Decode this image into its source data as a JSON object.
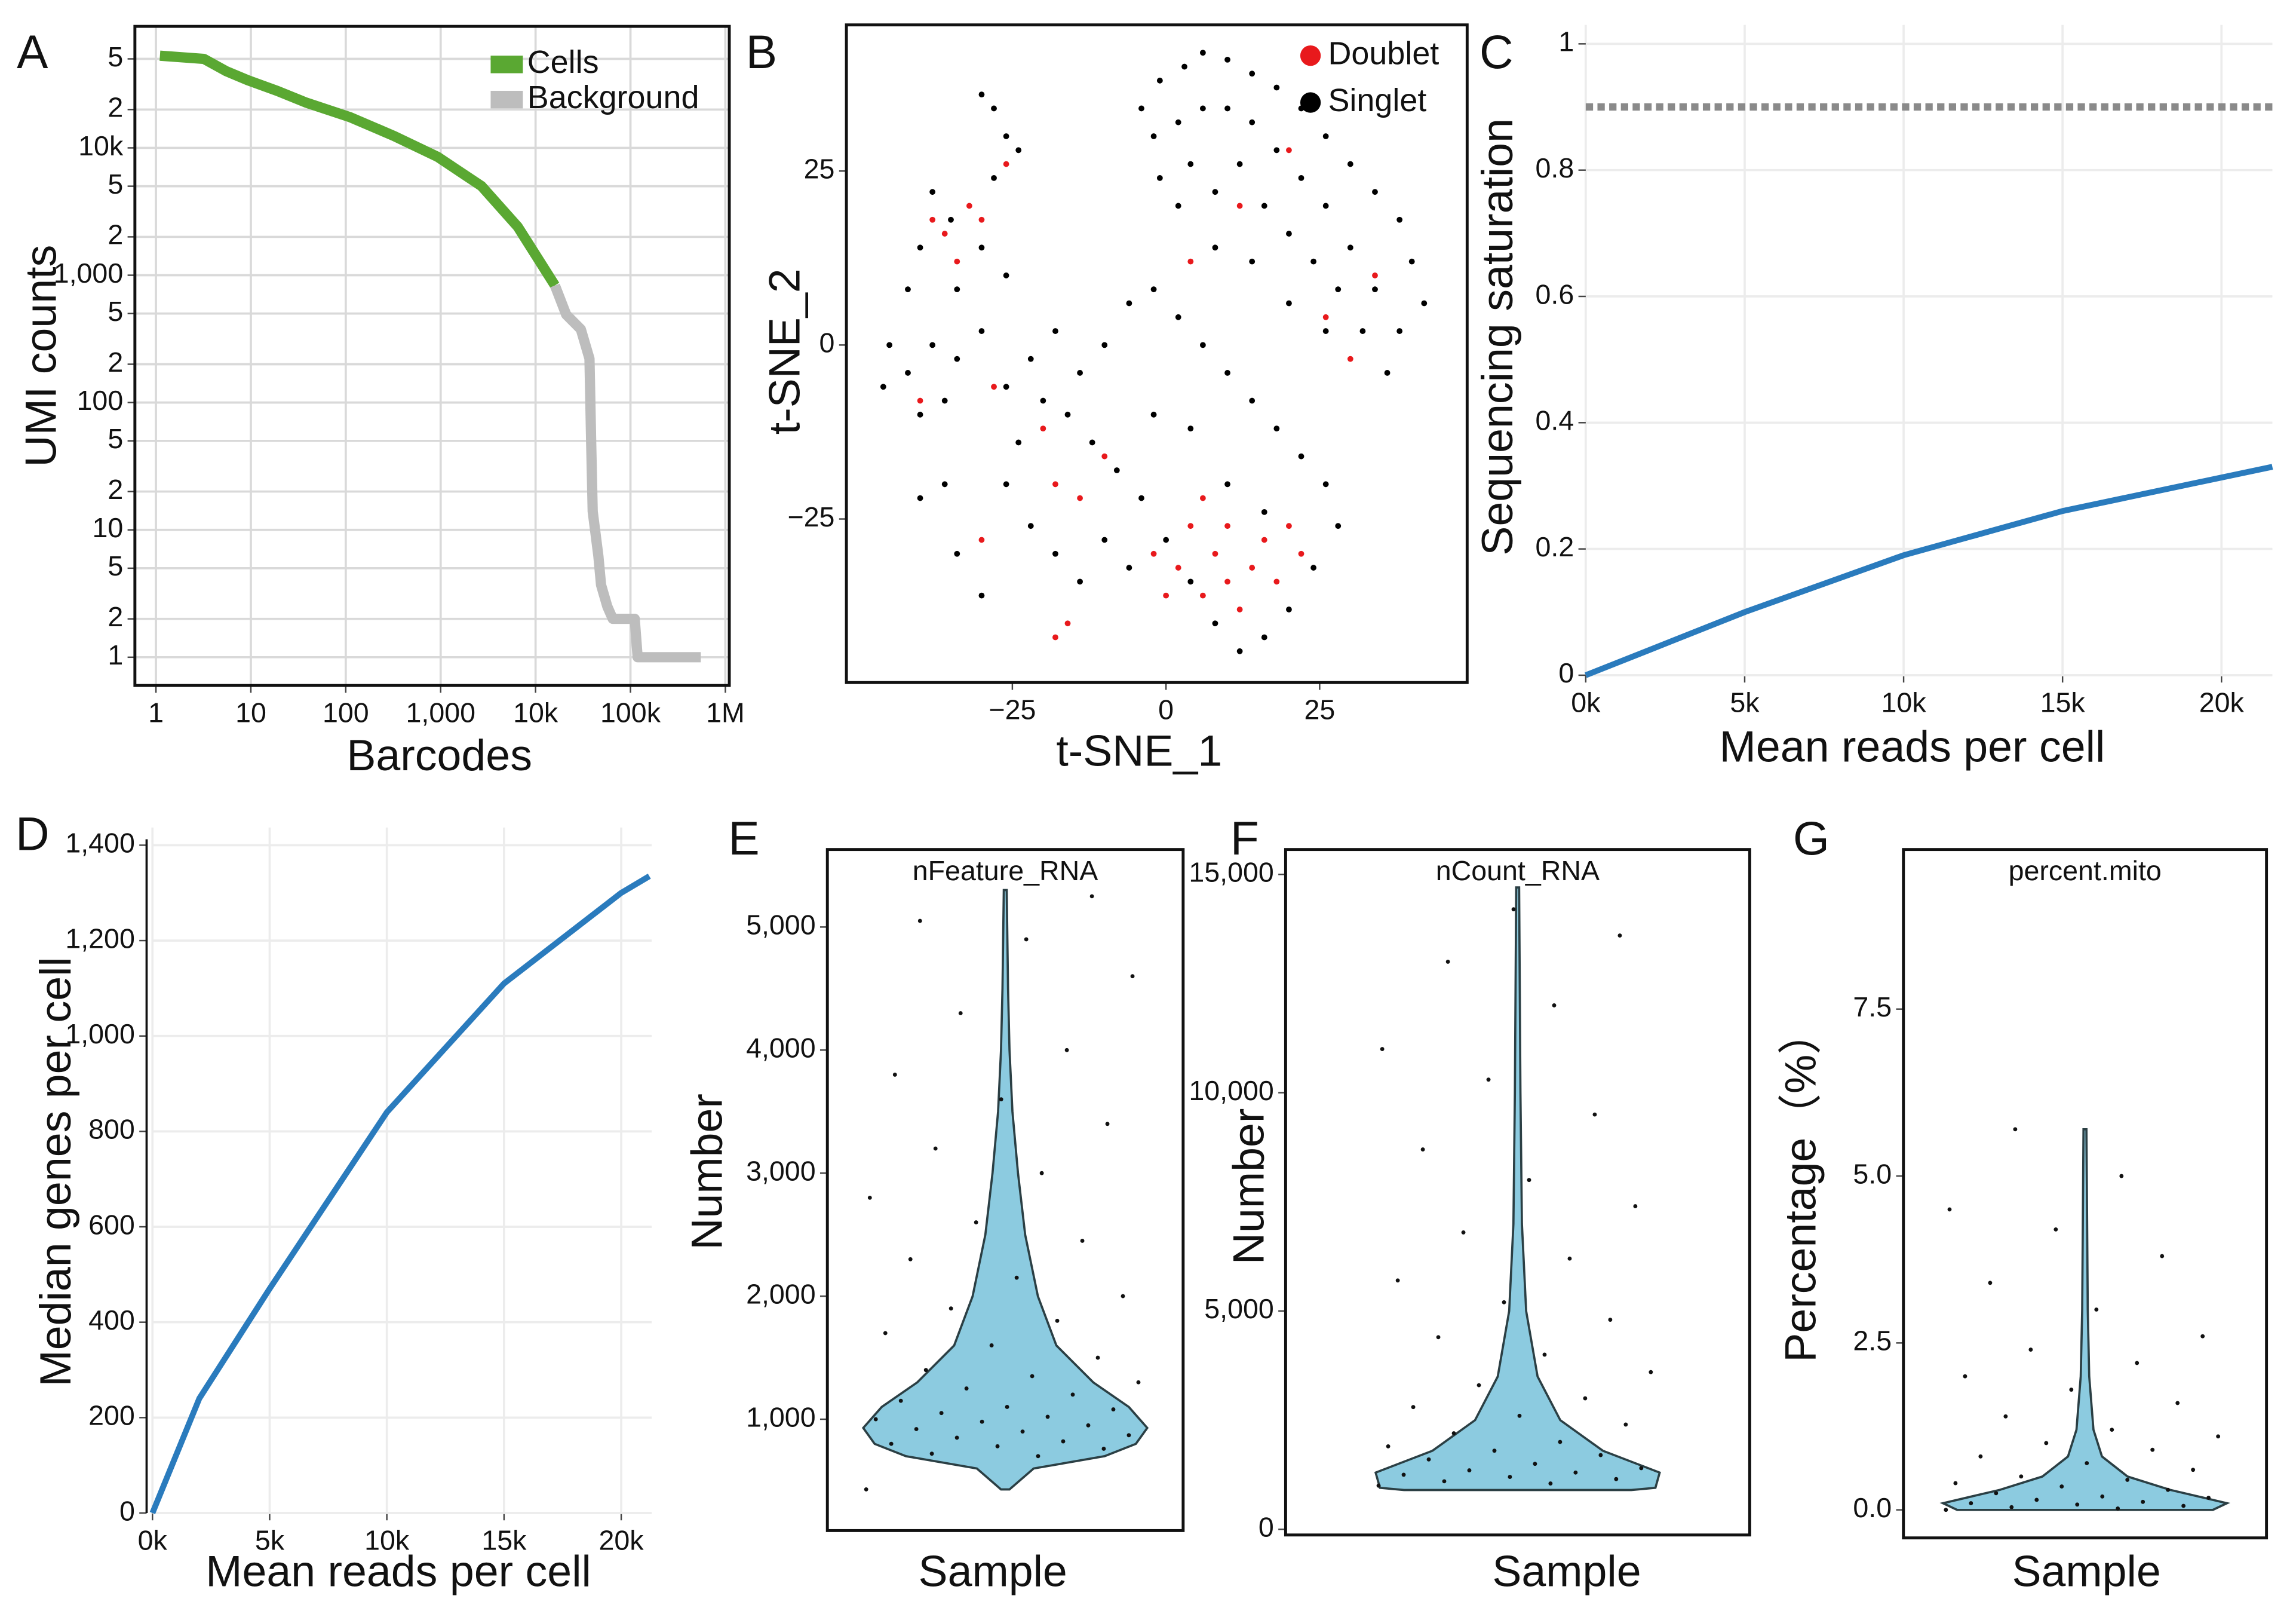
{
  "chart_data": [
    {
      "type": "line",
      "label": "A",
      "xlabel": "Barcodes",
      "ylabel": "UMI counts",
      "xscale": "log",
      "yscale": "log",
      "xlim": [
        0.6,
        1100000
      ],
      "ylim": [
        0.6,
        90000
      ],
      "xticks": [
        1,
        10,
        100,
        {
          "value": 1000,
          "label": "1,000"
        },
        {
          "value": 10000,
          "label": "10k"
        },
        {
          "value": 100000,
          "label": "100k"
        },
        {
          "value": 1000000,
          "label": "1M"
        }
      ],
      "yticks": [
        1,
        2,
        5,
        10,
        {
          "value": 20,
          "label": "2"
        },
        {
          "value": 50,
          "label": "5"
        },
        100,
        {
          "value": 200,
          "label": "2"
        },
        {
          "value": 500,
          "label": "5"
        },
        {
          "value": 1000,
          "label": "1,000"
        },
        {
          "value": 2000,
          "label": "2"
        },
        {
          "value": 5000,
          "label": "5"
        },
        {
          "value": 10000,
          "label": "10k"
        },
        {
          "value": 20000,
          "label": "2"
        },
        {
          "value": 50000,
          "label": "5"
        }
      ],
      "grid": true,
      "legend": "upper right",
      "series": [
        {
          "name": "Cells",
          "color": "#5aa832",
          "x": [
            1.1,
            3.2,
            5.5,
            9.3,
            19,
            38,
            111,
            322,
            930,
            2700,
            6500,
            16000
          ],
          "values": [
            53000,
            50000,
            40000,
            34000,
            28000,
            22700,
            17400,
            12400,
            8500,
            5000,
            2400,
            830
          ]
        },
        {
          "name": "Background",
          "color": "#bdbdbd",
          "x": [
            16000,
            21000,
            30000,
            37000,
            38500,
            40000,
            46000,
            49000,
            57000,
            65000,
            93000,
            111000,
            119000,
            550000
          ],
          "values": [
            830,
            490,
            376,
            221,
            52,
            14,
            6.2,
            3.7,
            2.5,
            2,
            2,
            2,
            1,
            1
          ]
        }
      ]
    },
    {
      "type": "scatter",
      "label": "B",
      "xlabel": "t-SNE_1",
      "ylabel": "t-SNE_2",
      "xlim": [
        -52,
        49
      ],
      "ylim": [
        -48.5,
        46
      ],
      "xticks": [
        {
          "value": -25,
          "label": "−25"
        },
        0,
        25
      ],
      "yticks": [
        {
          "value": -25,
          "label": "−25"
        },
        0,
        25
      ],
      "grid": false,
      "legend": "upper right",
      "series": [
        {
          "name": "Doublet",
          "color": "#e8191c",
          "x": [
            -38,
            -34,
            -30,
            -36,
            -32,
            -40,
            -28,
            -20,
            -18,
            -14,
            -10,
            -2,
            2,
            6,
            8,
            10,
            12,
            14,
            16,
            18,
            4,
            0,
            6,
            20,
            22,
            10,
            -16,
            -18,
            26,
            30,
            34,
            4,
            12,
            20,
            -30,
            -26
          ],
          "values": [
            18,
            12,
            18,
            16,
            20,
            -8,
            -6,
            -12,
            -20,
            -22,
            -16,
            -30,
            -32,
            -36,
            -30,
            -34,
            -38,
            -32,
            -28,
            -34,
            -26,
            -36,
            -22,
            -26,
            -30,
            -26,
            -40,
            -42,
            4,
            -2,
            10,
            12,
            20,
            28,
            -28,
            26
          ]
        },
        {
          "name": "Singlet",
          "color": "#000000",
          "x": [
            -1,
            3,
            6,
            10,
            14,
            18,
            22,
            26,
            30,
            34,
            38,
            40,
            42,
            38,
            34,
            30,
            26,
            22,
            18,
            14,
            10,
            6,
            2,
            -2,
            -4,
            4,
            8,
            12,
            16,
            20,
            24,
            28,
            32,
            36,
            26,
            20,
            14,
            8,
            2,
            -1,
            -38,
            -35,
            -30,
            -26,
            -40,
            -34,
            -28,
            -26,
            -28,
            -30,
            -24,
            -42,
            -45,
            -42,
            -38,
            -34,
            -30,
            -46,
            -40,
            -36,
            -22,
            -18,
            -14,
            -10,
            -6,
            -2,
            2,
            6,
            10,
            14,
            18,
            22,
            26,
            28,
            24,
            20,
            16,
            12,
            8,
            4,
            0,
            -4,
            -8,
            -12,
            -16,
            -20,
            -24,
            -26,
            -22,
            -18,
            -14,
            -10,
            -6,
            -34,
            -30,
            -36,
            -40,
            -26,
            10,
            16,
            4,
            -2
          ],
          "values": [
            38,
            40,
            42,
            41,
            39,
            37,
            34,
            30,
            26,
            22,
            18,
            12,
            6,
            2,
            8,
            14,
            20,
            24,
            28,
            32,
            34,
            34,
            32,
            30,
            34,
            26,
            22,
            26,
            20,
            16,
            12,
            8,
            2,
            -4,
            2,
            6,
            12,
            14,
            20,
            24,
            22,
            18,
            14,
            10,
            14,
            8,
            24,
            30,
            34,
            36,
            28,
            8,
            0,
            -4,
            0,
            -2,
            2,
            -6,
            -10,
            -8,
            -2,
            2,
            -4,
            0,
            6,
            8,
            4,
            0,
            -4,
            -8,
            -12,
            -16,
            -20,
            -26,
            -32,
            -38,
            -42,
            -44,
            -40,
            -34,
            -28,
            -22,
            -18,
            -14,
            -10,
            -8,
            -14,
            -20,
            -26,
            -30,
            -34,
            -28,
            -32,
            -30,
            -36,
            -20,
            -22,
            -6,
            -20,
            -24,
            -12,
            -10
          ]
        }
      ]
    },
    {
      "type": "line",
      "label": "C",
      "xlabel": "Mean reads per cell",
      "ylabel": "Sequencing saturation",
      "xlim": [
        0,
        21600
      ],
      "ylim": [
        0,
        1.03
      ],
      "xticks": [
        {
          "value": 0,
          "label": "0k"
        },
        {
          "value": 5000,
          "label": "5k"
        },
        {
          "value": 10000,
          "label": "10k"
        },
        {
          "value": 15000,
          "label": "15k"
        },
        {
          "value": 20000,
          "label": "20k"
        }
      ],
      "yticks": [
        0,
        0.2,
        0.4,
        0.6,
        0.8,
        1
      ],
      "grid": true,
      "hline": 0.9,
      "color": "#2a7bbd",
      "x": [
        0,
        2000,
        5000,
        10000,
        15000,
        21600
      ],
      "values": [
        0,
        0.04,
        0.1,
        0.19,
        0.26,
        0.33
      ]
    },
    {
      "type": "line",
      "label": "D",
      "xlabel": "Mean reads per cell",
      "ylabel": "Median genes per cell",
      "xlim": [
        0,
        21300
      ],
      "ylim": [
        0,
        1437
      ],
      "xticks": [
        {
          "value": 0,
          "label": "0k"
        },
        {
          "value": 5000,
          "label": "5k"
        },
        {
          "value": 10000,
          "label": "10k"
        },
        {
          "value": 15000,
          "label": "15k"
        },
        {
          "value": 20000,
          "label": "20k"
        }
      ],
      "yticks": [
        0,
        200,
        400,
        600,
        800,
        {
          "value": 1000,
          "label": "1,000"
        },
        {
          "value": 1200,
          "label": "1,200"
        },
        {
          "value": 1400,
          "label": "1,400"
        }
      ],
      "grid": true,
      "color": "#2a7bbd",
      "x": [
        0,
        2000,
        5000,
        10000,
        15000,
        20000,
        21200
      ],
      "values": [
        0,
        240,
        470,
        840,
        1110,
        1300,
        1335
      ]
    },
    {
      "type": "violin",
      "label": "E",
      "title": "nFeature_RNA",
      "xlabel": "Sample",
      "ylabel": "Number",
      "ylim": [
        95,
        5630
      ],
      "yticks": [
        {
          "value": 1000,
          "label": "1,000"
        },
        {
          "value": 2000,
          "label": "2,000"
        },
        {
          "value": 3000,
          "label": "3,000"
        },
        {
          "value": 4000,
          "label": "4,000"
        },
        {
          "value": 5000,
          "label": "5,000"
        }
      ],
      "grid": false,
      "color": "#8ccbe0",
      "violin": {
        "y": [
          430,
          600,
          700,
          800,
          930,
          1100,
          1300,
          1600,
          2000,
          2500,
          3000,
          3500,
          4000,
          4500,
          5300
        ],
        "density": [
          0.03,
          0.2,
          0.7,
          0.92,
          1,
          0.87,
          0.62,
          0.36,
          0.23,
          0.14,
          0.09,
          0.05,
          0.03,
          0.02,
          0.01
        ]
      },
      "points": [
        430,
        700,
        720,
        760,
        780,
        800,
        820,
        850,
        870,
        900,
        920,
        950,
        980,
        1000,
        1020,
        1050,
        1080,
        1100,
        1150,
        1200,
        1250,
        1300,
        1350,
        1400,
        1500,
        1600,
        1700,
        1800,
        1900,
        2000,
        2150,
        2300,
        2450,
        2600,
        2800,
        3000,
        3200,
        3400,
        3600,
        3800,
        4000,
        4300,
        4600,
        4900,
        5050,
        5250
      ]
    },
    {
      "type": "violin",
      "label": "F",
      "title": "nCount_RNA",
      "xlabel": "Sample",
      "ylabel": "Number",
      "ylim": [
        -130,
        15570
      ],
      "yticks": [
        0,
        {
          "value": 5000,
          "label": "5,000"
        },
        {
          "value": 10000,
          "label": "10,000"
        },
        {
          "value": 15000,
          "label": "15,000"
        }
      ],
      "grid": false,
      "color": "#8ccbe0",
      "violin": {
        "y": [
          900,
          950,
          1300,
          1800,
          2500,
          3500,
          5000,
          7000,
          10000,
          14700
        ],
        "density": [
          0.8,
          0.97,
          1,
          0.6,
          0.3,
          0.14,
          0.06,
          0.03,
          0.02,
          0.01
        ]
      },
      "points": [
        1000,
        1050,
        1100,
        1150,
        1200,
        1250,
        1300,
        1350,
        1400,
        1500,
        1600,
        1700,
        1800,
        1900,
        2000,
        2200,
        2400,
        2600,
        2800,
        3000,
        3300,
        3600,
        4000,
        4400,
        4800,
        5200,
        5700,
        6200,
        6800,
        7400,
        8000,
        8700,
        9500,
        10300,
        11000,
        12000,
        13000,
        13600,
        14200
      ]
    },
    {
      "type": "violin",
      "label": "G",
      "title": "percent.mito",
      "xlabel": "Sample",
      "ylabel": "Percentage（%）",
      "ylim": [
        -0.42,
        9.89
      ],
      "yticks": [
        {
          "value": 0,
          "label": "0.0"
        },
        2.5,
        {
          "value": 5,
          "label": "5.0"
        },
        7.5
      ],
      "grid": false,
      "color": "#8ccbe0",
      "violin": {
        "y": [
          0,
          0.1,
          0.3,
          0.5,
          0.8,
          1.2,
          2,
          3,
          5.7
        ],
        "density": [
          0.9,
          1,
          0.6,
          0.3,
          0.12,
          0.06,
          0.03,
          0.02,
          0.01
        ]
      },
      "points": [
        0,
        0.02,
        0.04,
        0.06,
        0.08,
        0.1,
        0.12,
        0.15,
        0.18,
        0.2,
        0.25,
        0.3,
        0.35,
        0.4,
        0.45,
        0.5,
        0.6,
        0.7,
        0.8,
        0.9,
        1,
        1.1,
        1.2,
        1.4,
        1.6,
        1.8,
        2,
        2.2,
        2.4,
        2.6,
        3,
        3.4,
        3.8,
        4.2,
        4.5,
        5,
        5.7
      ]
    }
  ]
}
